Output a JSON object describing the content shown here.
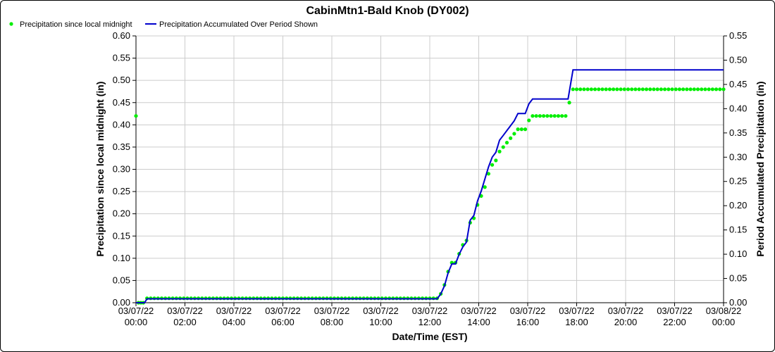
{
  "chart_data": {
    "type": "line",
    "title": "CabinMtn1-Bald Knob (DY002)",
    "xlabel": "Date/Time (EST)",
    "ylabel_left": "Precipitation since local midnight (in)",
    "ylabel_right": "Period Accumulated Precipitation (in)",
    "y_left_lim": [
      0,
      0.6
    ],
    "y_right_lim": [
      0,
      0.55
    ],
    "y_left_ticks": [
      "0.00",
      "0.05",
      "0.10",
      "0.15",
      "0.20",
      "0.25",
      "0.30",
      "0.35",
      "0.40",
      "0.45",
      "0.50",
      "0.55",
      "0.60"
    ],
    "y_right_ticks": [
      "0.00",
      "0.05",
      "0.10",
      "0.15",
      "0.20",
      "0.25",
      "0.30",
      "0.35",
      "0.40",
      "0.45",
      "0.50",
      "0.55"
    ],
    "x_range_hours": [
      0,
      24
    ],
    "x_ticks": [
      {
        "date": "03/07/22",
        "time": "00:00"
      },
      {
        "date": "03/07/22",
        "time": "02:00"
      },
      {
        "date": "03/07/22",
        "time": "04:00"
      },
      {
        "date": "03/07/22",
        "time": "06:00"
      },
      {
        "date": "03/07/22",
        "time": "08:00"
      },
      {
        "date": "03/07/22",
        "time": "10:00"
      },
      {
        "date": "03/07/22",
        "time": "12:00"
      },
      {
        "date": "03/07/22",
        "time": "14:00"
      },
      {
        "date": "03/07/22",
        "time": "16:00"
      },
      {
        "date": "03/07/22",
        "time": "18:00"
      },
      {
        "date": "03/07/22",
        "time": "20:00"
      },
      {
        "date": "03/07/22",
        "time": "22:00"
      },
      {
        "date": "03/08/22",
        "time": "00:00"
      }
    ],
    "grid": true,
    "legend_position": "top-left",
    "series": [
      {
        "name": "Precipitation since local midnight",
        "axis": "left",
        "style": "dots",
        "color": "#00ee00",
        "points": [
          [
            0.0,
            0.42
          ],
          [
            0.1,
            0.0
          ],
          [
            0.2,
            0.0
          ],
          [
            0.3,
            0.0
          ],
          [
            0.45,
            0.01
          ],
          [
            0.6,
            0.01
          ],
          [
            0.75,
            0.01
          ],
          [
            0.9,
            0.01
          ],
          [
            1.05,
            0.01
          ],
          [
            1.2,
            0.01
          ],
          [
            1.35,
            0.01
          ],
          [
            1.5,
            0.01
          ],
          [
            1.65,
            0.01
          ],
          [
            1.8,
            0.01
          ],
          [
            1.95,
            0.01
          ],
          [
            2.1,
            0.01
          ],
          [
            2.25,
            0.01
          ],
          [
            2.4,
            0.01
          ],
          [
            2.55,
            0.01
          ],
          [
            2.7,
            0.01
          ],
          [
            2.85,
            0.01
          ],
          [
            3.0,
            0.01
          ],
          [
            3.15,
            0.01
          ],
          [
            3.3,
            0.01
          ],
          [
            3.45,
            0.01
          ],
          [
            3.6,
            0.01
          ],
          [
            3.75,
            0.01
          ],
          [
            3.9,
            0.01
          ],
          [
            4.05,
            0.01
          ],
          [
            4.2,
            0.01
          ],
          [
            4.35,
            0.01
          ],
          [
            4.5,
            0.01
          ],
          [
            4.65,
            0.01
          ],
          [
            4.8,
            0.01
          ],
          [
            4.95,
            0.01
          ],
          [
            5.1,
            0.01
          ],
          [
            5.25,
            0.01
          ],
          [
            5.4,
            0.01
          ],
          [
            5.55,
            0.01
          ],
          [
            5.7,
            0.01
          ],
          [
            5.85,
            0.01
          ],
          [
            6.0,
            0.01
          ],
          [
            6.15,
            0.01
          ],
          [
            6.3,
            0.01
          ],
          [
            6.45,
            0.01
          ],
          [
            6.6,
            0.01
          ],
          [
            6.75,
            0.01
          ],
          [
            6.9,
            0.01
          ],
          [
            7.05,
            0.01
          ],
          [
            7.2,
            0.01
          ],
          [
            7.35,
            0.01
          ],
          [
            7.5,
            0.01
          ],
          [
            7.65,
            0.01
          ],
          [
            7.8,
            0.01
          ],
          [
            7.95,
            0.01
          ],
          [
            8.1,
            0.01
          ],
          [
            8.25,
            0.01
          ],
          [
            8.4,
            0.01
          ],
          [
            8.55,
            0.01
          ],
          [
            8.7,
            0.01
          ],
          [
            8.85,
            0.01
          ],
          [
            9.0,
            0.01
          ],
          [
            9.15,
            0.01
          ],
          [
            9.3,
            0.01
          ],
          [
            9.45,
            0.01
          ],
          [
            9.6,
            0.01
          ],
          [
            9.75,
            0.01
          ],
          [
            9.9,
            0.01
          ],
          [
            10.05,
            0.01
          ],
          [
            10.2,
            0.01
          ],
          [
            10.35,
            0.01
          ],
          [
            10.5,
            0.01
          ],
          [
            10.65,
            0.01
          ],
          [
            10.8,
            0.01
          ],
          [
            10.95,
            0.01
          ],
          [
            11.1,
            0.01
          ],
          [
            11.25,
            0.01
          ],
          [
            11.4,
            0.01
          ],
          [
            11.55,
            0.01
          ],
          [
            11.7,
            0.01
          ],
          [
            11.85,
            0.01
          ],
          [
            12.0,
            0.01
          ],
          [
            12.15,
            0.01
          ],
          [
            12.3,
            0.01
          ],
          [
            12.45,
            0.02
          ],
          [
            12.6,
            0.04
          ],
          [
            12.75,
            0.07
          ],
          [
            12.9,
            0.09
          ],
          [
            13.05,
            0.09
          ],
          [
            13.2,
            0.11
          ],
          [
            13.35,
            0.13
          ],
          [
            13.5,
            0.14
          ],
          [
            13.65,
            0.18
          ],
          [
            13.8,
            0.19
          ],
          [
            13.95,
            0.22
          ],
          [
            14.1,
            0.24
          ],
          [
            14.25,
            0.26
          ],
          [
            14.4,
            0.29
          ],
          [
            14.55,
            0.31
          ],
          [
            14.7,
            0.32
          ],
          [
            14.85,
            0.34
          ],
          [
            15.0,
            0.35
          ],
          [
            15.15,
            0.36
          ],
          [
            15.3,
            0.37
          ],
          [
            15.45,
            0.38
          ],
          [
            15.6,
            0.39
          ],
          [
            15.75,
            0.39
          ],
          [
            15.9,
            0.39
          ],
          [
            16.05,
            0.41
          ],
          [
            16.2,
            0.42
          ],
          [
            16.35,
            0.42
          ],
          [
            16.5,
            0.42
          ],
          [
            16.65,
            0.42
          ],
          [
            16.8,
            0.42
          ],
          [
            16.95,
            0.42
          ],
          [
            17.1,
            0.42
          ],
          [
            17.25,
            0.42
          ],
          [
            17.4,
            0.42
          ],
          [
            17.55,
            0.42
          ],
          [
            17.7,
            0.45
          ],
          [
            17.85,
            0.48
          ],
          [
            18.0,
            0.48
          ],
          [
            18.15,
            0.48
          ],
          [
            18.3,
            0.48
          ],
          [
            18.45,
            0.48
          ],
          [
            18.6,
            0.48
          ],
          [
            18.75,
            0.48
          ],
          [
            18.9,
            0.48
          ],
          [
            19.05,
            0.48
          ],
          [
            19.2,
            0.48
          ],
          [
            19.35,
            0.48
          ],
          [
            19.5,
            0.48
          ],
          [
            19.65,
            0.48
          ],
          [
            19.8,
            0.48
          ],
          [
            19.95,
            0.48
          ],
          [
            20.1,
            0.48
          ],
          [
            20.25,
            0.48
          ],
          [
            20.4,
            0.48
          ],
          [
            20.55,
            0.48
          ],
          [
            20.7,
            0.48
          ],
          [
            20.85,
            0.48
          ],
          [
            21.0,
            0.48
          ],
          [
            21.15,
            0.48
          ],
          [
            21.3,
            0.48
          ],
          [
            21.45,
            0.48
          ],
          [
            21.6,
            0.48
          ],
          [
            21.75,
            0.48
          ],
          [
            21.9,
            0.48
          ],
          [
            22.05,
            0.48
          ],
          [
            22.2,
            0.48
          ],
          [
            22.35,
            0.48
          ],
          [
            22.5,
            0.48
          ],
          [
            22.65,
            0.48
          ],
          [
            22.8,
            0.48
          ],
          [
            22.95,
            0.48
          ],
          [
            23.1,
            0.48
          ],
          [
            23.25,
            0.48
          ],
          [
            23.4,
            0.48
          ],
          [
            23.55,
            0.48
          ],
          [
            23.7,
            0.48
          ],
          [
            23.85,
            0.48
          ],
          [
            24.0,
            0.48
          ]
        ]
      },
      {
        "name": "Precipitation Accumulated Over Period Shown",
        "axis": "right",
        "style": "line",
        "color": "#0000cc",
        "points": [
          [
            0.0,
            0.0
          ],
          [
            0.35,
            0.0
          ],
          [
            0.45,
            0.008
          ],
          [
            12.3,
            0.008
          ],
          [
            12.45,
            0.018
          ],
          [
            12.6,
            0.035
          ],
          [
            12.75,
            0.062
          ],
          [
            12.9,
            0.08
          ],
          [
            13.05,
            0.08
          ],
          [
            13.2,
            0.1
          ],
          [
            13.35,
            0.115
          ],
          [
            13.5,
            0.125
          ],
          [
            13.65,
            0.17
          ],
          [
            13.8,
            0.18
          ],
          [
            13.95,
            0.21
          ],
          [
            14.1,
            0.23
          ],
          [
            14.25,
            0.255
          ],
          [
            14.4,
            0.28
          ],
          [
            14.55,
            0.3
          ],
          [
            14.7,
            0.31
          ],
          [
            14.85,
            0.335
          ],
          [
            15.0,
            0.345
          ],
          [
            15.15,
            0.355
          ],
          [
            15.3,
            0.365
          ],
          [
            15.45,
            0.375
          ],
          [
            15.6,
            0.39
          ],
          [
            15.9,
            0.39
          ],
          [
            16.05,
            0.41
          ],
          [
            16.2,
            0.42
          ],
          [
            17.65,
            0.42
          ],
          [
            17.85,
            0.48
          ],
          [
            24.0,
            0.48
          ]
        ]
      }
    ]
  }
}
